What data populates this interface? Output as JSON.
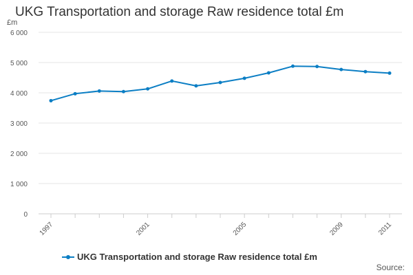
{
  "title": "UKG Transportation and storage Raw residence total £m",
  "unit_label": "£m",
  "source_label": "Source:",
  "legend": {
    "label": "UKG Transportation and storage Raw residence total £m"
  },
  "colors": {
    "series": "#0b7ec4",
    "grid": "#e6e6e6",
    "axis_text": "#555555"
  },
  "chart_data": {
    "type": "line",
    "title": "UKG Transportation and storage Raw residence total £m",
    "xlabel": "",
    "ylabel": "£m",
    "x": [
      1997,
      1998,
      1999,
      2000,
      2001,
      2002,
      2003,
      2004,
      2005,
      2006,
      2007,
      2008,
      2009,
      2010,
      2011
    ],
    "x_ticks": [
      1997,
      2001,
      2005,
      2009,
      2011
    ],
    "ylim": [
      0,
      6000
    ],
    "y_ticks": [
      0,
      1000,
      2000,
      3000,
      4000,
      5000,
      6000
    ],
    "y_tick_labels": [
      "0",
      "1 000",
      "2 000",
      "3 000",
      "4 000",
      "5 000",
      "6 000"
    ],
    "series": [
      {
        "name": "UKG Transportation and storage Raw residence total £m",
        "values": [
          3740,
          3970,
          4060,
          4040,
          4130,
          4390,
          4230,
          4340,
          4480,
          4660,
          4880,
          4870,
          4770,
          4700,
          4650
        ]
      }
    ],
    "legend_position": "bottom"
  }
}
